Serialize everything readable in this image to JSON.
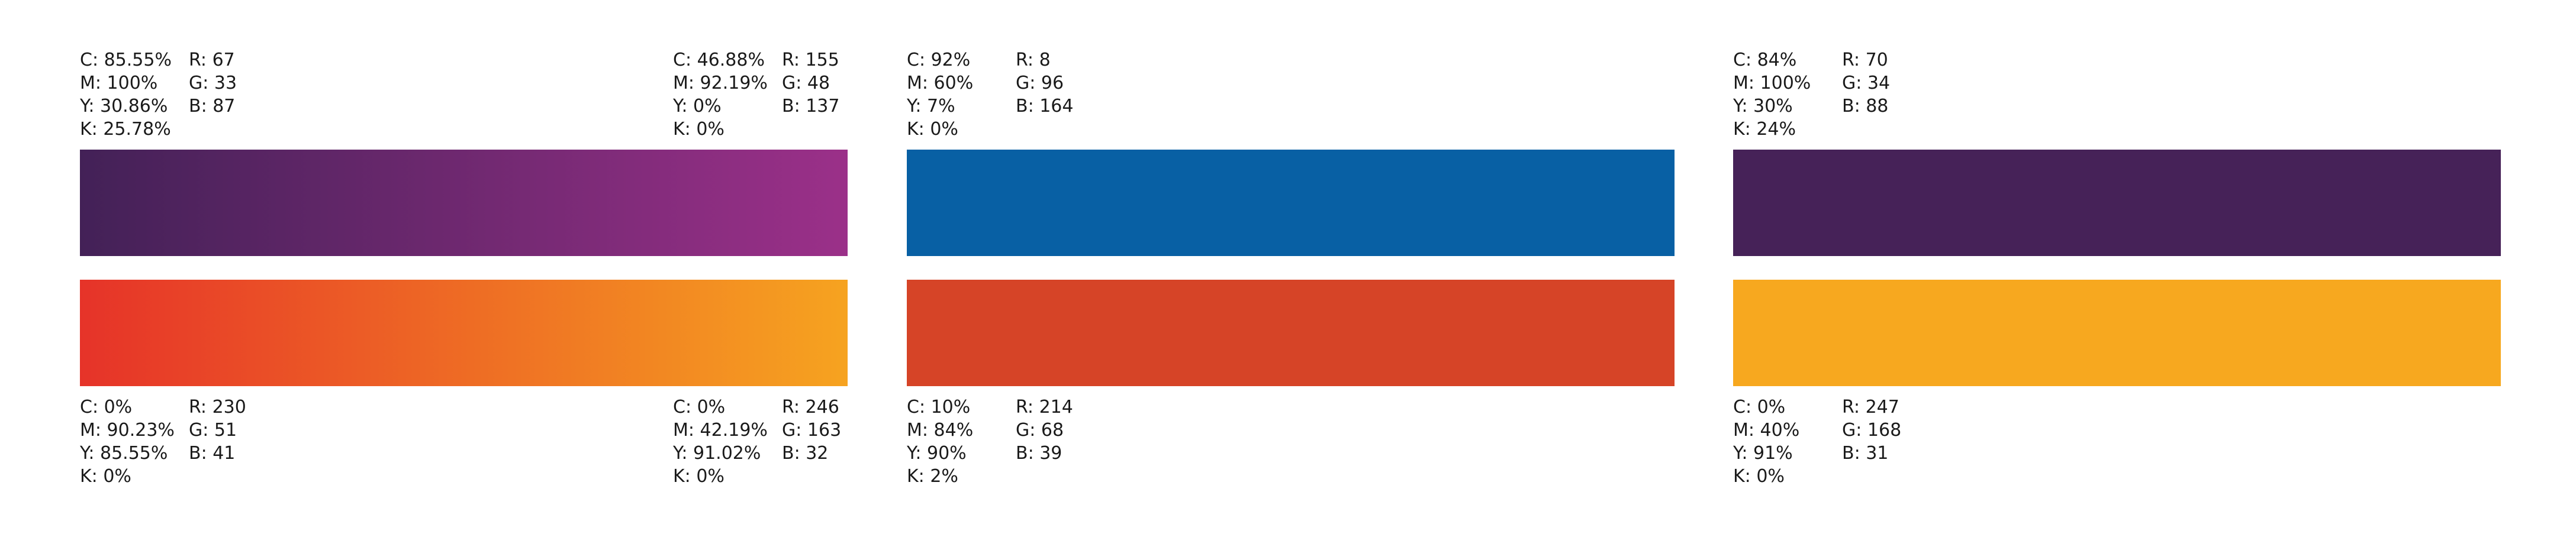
{
  "palette": {
    "gradient_purple": {
      "start_swatch": {
        "cmyk": [
          "C: 85.55%",
          "M: 100%",
          "Y: 30.86%",
          "K: 25.78%"
        ],
        "rgb": [
          "R: 67",
          "G: 33",
          "B: 87"
        ]
      },
      "end_swatch": {
        "cmyk": [
          "C: 46.88%",
          "M: 92.19%",
          "Y: 0%",
          "K: 0%"
        ],
        "rgb": [
          "R: 155",
          "G: 48",
          "B: 137"
        ]
      },
      "colors": [
        "#432157",
        "#9B3089"
      ]
    },
    "gradient_orange": {
      "start_swatch": {
        "cmyk": [
          "C: 0%",
          "M: 90.23%",
          "Y: 85.55%",
          "K: 0%"
        ],
        "rgb": [
          "R: 230",
          "G: 51",
          "B: 41"
        ]
      },
      "end_swatch": {
        "cmyk": [
          "C: 0%",
          "M: 42.19%",
          "Y: 91.02%",
          "K: 0%"
        ],
        "rgb": [
          "R: 246",
          "G: 163",
          "B: 32"
        ]
      },
      "colors": [
        "#E63329",
        "#F6A320"
      ]
    },
    "solid_blue": {
      "cmyk": [
        "C: 92%",
        "M: 60%",
        "Y: 7%",
        "K: 0%"
      ],
      "rgb": [
        "R: 8",
        "G: 96",
        "B: 164"
      ],
      "color": "#0860A4"
    },
    "solid_red": {
      "cmyk": [
        "C: 10%",
        "M: 84%",
        "Y: 90%",
        "K: 2%"
      ],
      "rgb": [
        "R: 214",
        "G: 68",
        "B: 39"
      ],
      "color": "#D64427"
    },
    "solid_purple": {
      "cmyk": [
        "C: 84%",
        "M: 100%",
        "Y: 30%",
        "K: 24%"
      ],
      "rgb": [
        "R: 70",
        "G: 34",
        "B: 88"
      ],
      "color": "#462258"
    },
    "solid_yellow": {
      "cmyk": [
        "C: 0%",
        "M: 40%",
        "Y: 91%",
        "K: 0%"
      ],
      "rgb": [
        "R: 247",
        "G: 168",
        "B: 31"
      ],
      "color": "#F7A81F"
    }
  }
}
